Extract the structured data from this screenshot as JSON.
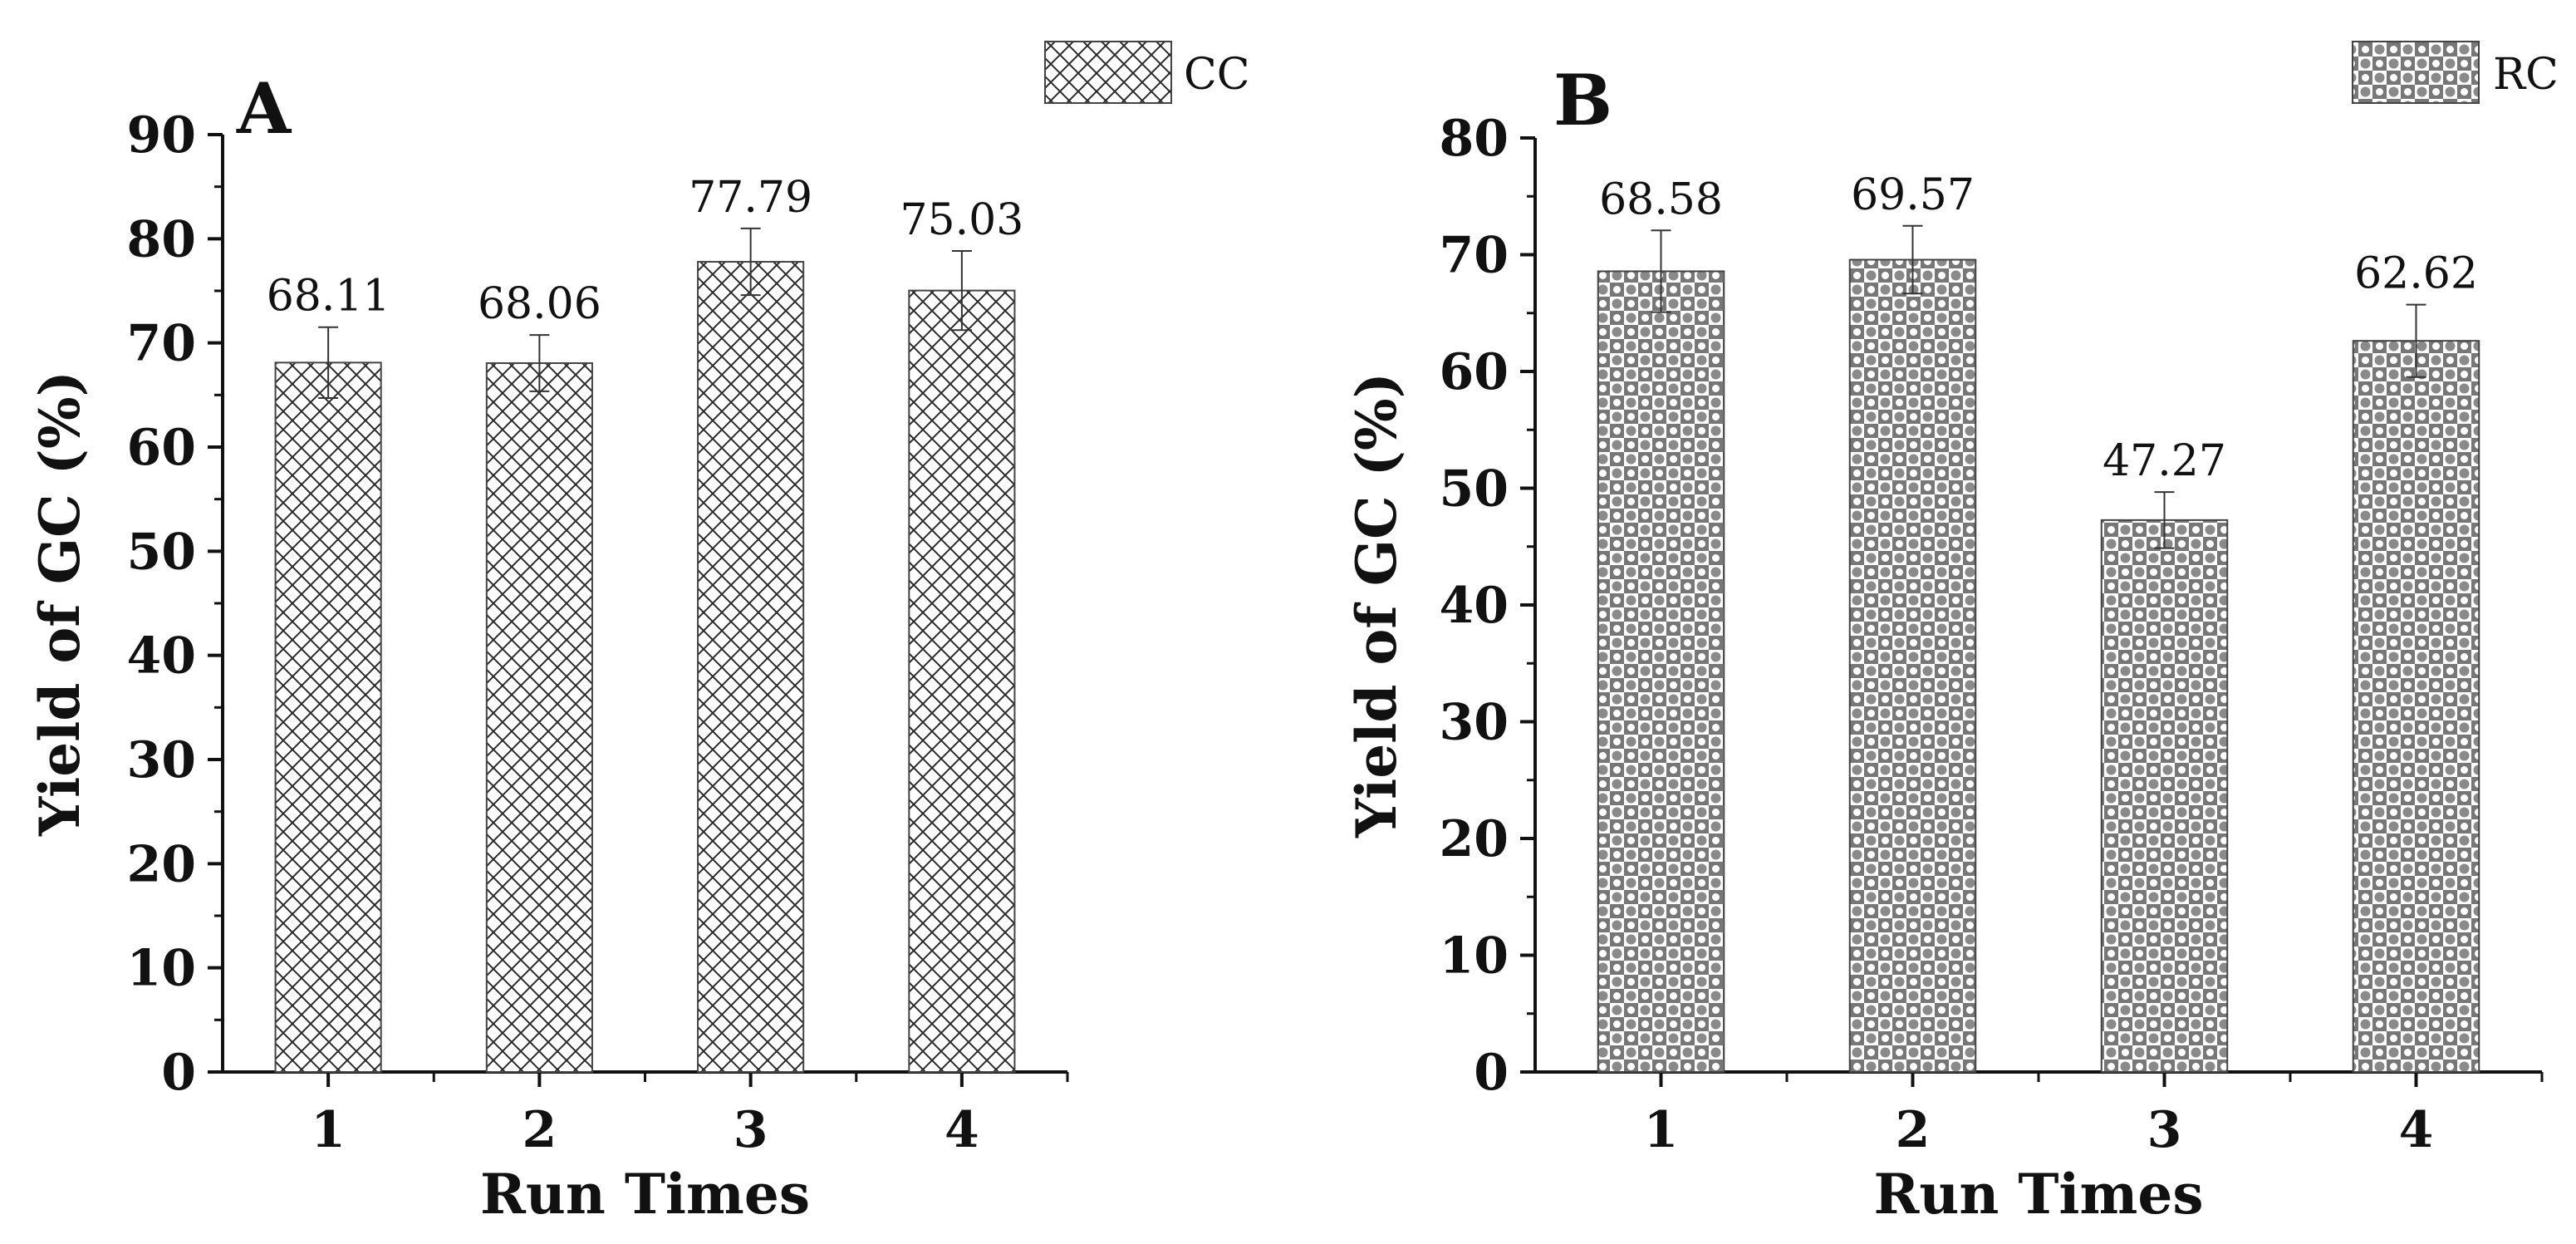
{
  "figure": {
    "panels_count": 2
  },
  "chart_data": [
    {
      "type": "bar",
      "panel_label": "A",
      "title": "",
      "xlabel": "Run Times",
      "ylabel": "Yield of GC (%)",
      "categories": [
        "1",
        "2",
        "3",
        "4"
      ],
      "series": [
        {
          "name": "CC",
          "values": [
            68.11,
            68.06,
            77.79,
            75.03
          ],
          "error_bars": [
            3.4,
            2.7,
            3.2,
            3.8
          ],
          "value_labels": [
            "68.11",
            "68.06",
            "77.79",
            "75.03"
          ],
          "pattern": "crosshatch"
        }
      ],
      "ylim": [
        0,
        90
      ],
      "yticks": [
        "0",
        "10",
        "20",
        "30",
        "40",
        "50",
        "60",
        "70",
        "80",
        "90"
      ],
      "legend": "top-right",
      "grid": false
    },
    {
      "type": "bar",
      "panel_label": "B",
      "title": "",
      "xlabel": "Run Times",
      "ylabel": "Yield of GC (%)",
      "categories": [
        "1",
        "2",
        "3",
        "4"
      ],
      "series": [
        {
          "name": "RC",
          "values": [
            68.58,
            69.57,
            47.27,
            62.62
          ],
          "error_bars": [
            3.5,
            2.9,
            2.4,
            3.1
          ],
          "value_labels": [
            "68.58",
            "69.57",
            "47.27",
            "62.62"
          ],
          "pattern": "checker-dots"
        }
      ],
      "ylim": [
        0,
        80
      ],
      "yticks": [
        "0",
        "10",
        "20",
        "30",
        "40",
        "50",
        "60",
        "70",
        "80"
      ],
      "legend": "top-right",
      "grid": false
    }
  ]
}
